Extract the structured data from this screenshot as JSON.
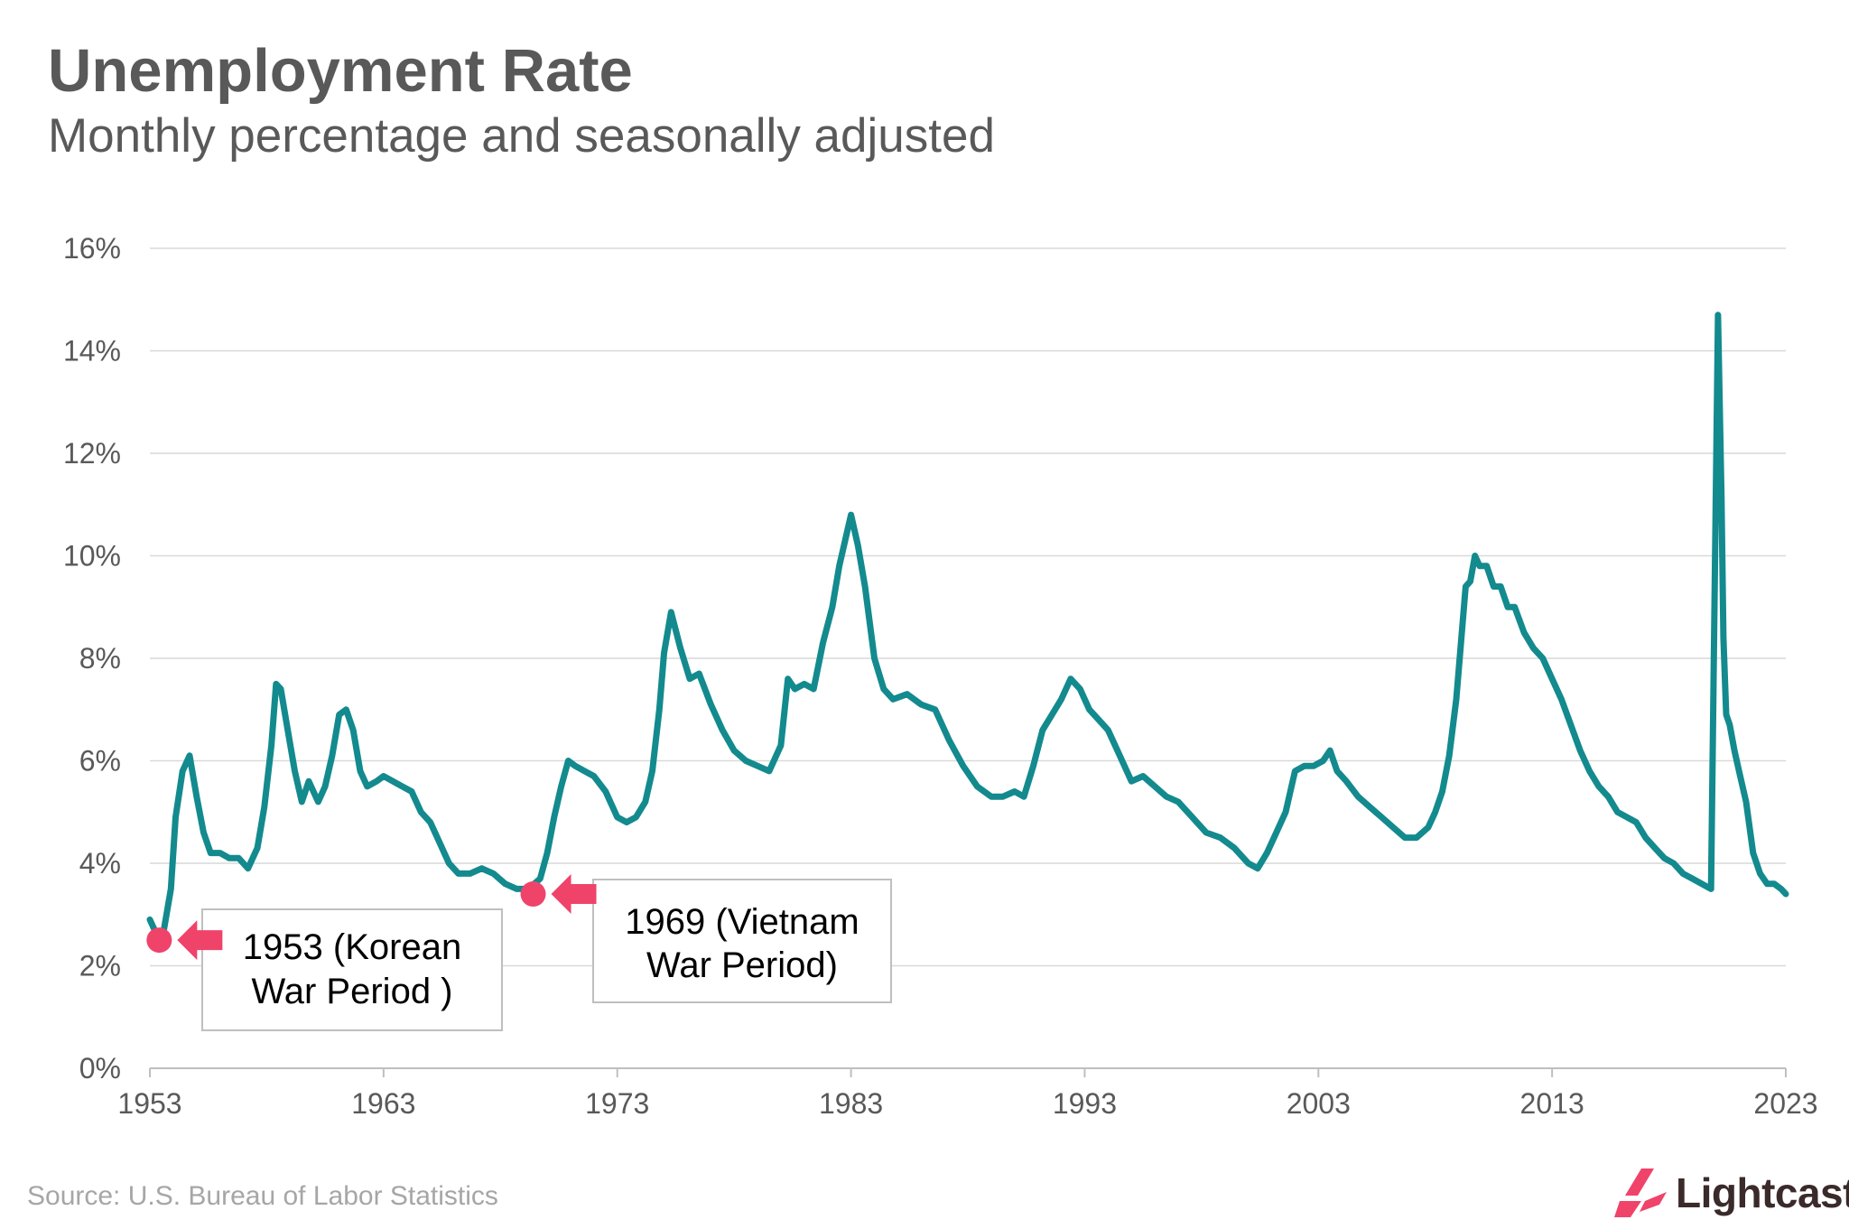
{
  "header": {
    "title": "Unemployment Rate",
    "subtitle": "Monthly percentage and seasonally adjusted"
  },
  "footer": {
    "source": "Source:  U.S. Bureau of Labor Statistics",
    "logo_text": "Lightcast"
  },
  "colors": {
    "line": "#138a8e",
    "grid": "#d9d9d9",
    "axis_text": "#595959",
    "marker": "#f0436a",
    "logo_mark": "#f0436a"
  },
  "chart_data": {
    "type": "line",
    "title": "Unemployment Rate",
    "subtitle": "Monthly percentage and seasonally adjusted",
    "xlabel": "",
    "ylabel": "",
    "xlim": [
      1953,
      2023
    ],
    "ylim": [
      0,
      16
    ],
    "x_ticks": [
      1953,
      1963,
      1973,
      1983,
      1993,
      2003,
      2013,
      2023
    ],
    "x_tick_labels": [
      "1953",
      "1963",
      "1973",
      "1983",
      "1993",
      "2003",
      "2013",
      "2023"
    ],
    "y_ticks": [
      0,
      2,
      4,
      6,
      8,
      10,
      12,
      14,
      16
    ],
    "y_tick_labels": [
      "0%",
      "2%",
      "4%",
      "6%",
      "8%",
      "10%",
      "12%",
      "14%",
      "16%"
    ],
    "grid": "horizontal",
    "series": [
      {
        "x": [
          1953.0,
          1953.3,
          1953.6,
          1953.9,
          1954.1,
          1954.4,
          1954.7,
          1955.0,
          1955.3,
          1955.6,
          1956.0,
          1956.4,
          1956.8,
          1957.2,
          1957.6,
          1957.9,
          1958.2,
          1958.4,
          1958.6,
          1958.9,
          1959.2,
          1959.5,
          1959.8,
          1960.2,
          1960.5,
          1960.8,
          1961.1,
          1961.4,
          1961.7,
          1962.0,
          1962.3,
          1962.7,
          1963.0,
          1963.4,
          1963.8,
          1964.2,
          1964.6,
          1965.0,
          1965.4,
          1965.8,
          1966.2,
          1966.7,
          1967.2,
          1967.7,
          1968.2,
          1968.7,
          1969.2,
          1969.7,
          1970.0,
          1970.3,
          1970.6,
          1970.9,
          1971.2,
          1971.6,
          1972.0,
          1972.5,
          1973.0,
          1973.4,
          1973.8,
          1974.2,
          1974.5,
          1974.8,
          1975.0,
          1975.3,
          1975.7,
          1976.1,
          1976.5,
          1977.0,
          1977.5,
          1978.0,
          1978.5,
          1979.0,
          1979.5,
          1980.0,
          1980.3,
          1980.6,
          1981.0,
          1981.4,
          1981.8,
          1982.2,
          1982.5,
          1982.8,
          1983.0,
          1983.3,
          1983.6,
          1984.0,
          1984.4,
          1984.8,
          1985.4,
          1986.0,
          1986.6,
          1987.2,
          1987.8,
          1988.4,
          1989.0,
          1989.5,
          1990.0,
          1990.4,
          1990.8,
          1991.2,
          1991.6,
          1992.0,
          1992.4,
          1992.8,
          1993.2,
          1993.6,
          1994.0,
          1994.5,
          1995.0,
          1995.5,
          1996.0,
          1996.5,
          1997.0,
          1997.6,
          1998.2,
          1998.8,
          1999.4,
          2000.0,
          2000.4,
          2000.8,
          2001.2,
          2001.6,
          2002.0,
          2002.4,
          2002.8,
          2003.2,
          2003.5,
          2003.8,
          2004.2,
          2004.7,
          2005.2,
          2005.7,
          2006.2,
          2006.7,
          2007.2,
          2007.7,
          2008.0,
          2008.3,
          2008.6,
          2008.9,
          2009.1,
          2009.3,
          2009.5,
          2009.7,
          2009.9,
          2010.2,
          2010.5,
          2010.8,
          2011.1,
          2011.4,
          2011.8,
          2012.2,
          2012.6,
          2013.0,
          2013.4,
          2013.8,
          2014.2,
          2014.6,
          2015.0,
          2015.4,
          2015.8,
          2016.2,
          2016.6,
          2017.0,
          2017.4,
          2017.8,
          2018.2,
          2018.6,
          2019.0,
          2019.4,
          2019.8,
          2020.1,
          2020.25,
          2020.33,
          2020.45,
          2020.6,
          2020.8,
          2021.0,
          2021.3,
          2021.6,
          2021.9,
          2022.2,
          2022.5,
          2022.8,
          2023.0
        ],
        "y": [
          2.9,
          2.6,
          2.7,
          3.5,
          4.9,
          5.8,
          6.1,
          5.3,
          4.6,
          4.2,
          4.2,
          4.1,
          4.1,
          3.9,
          4.3,
          5.1,
          6.3,
          7.5,
          7.4,
          6.6,
          5.8,
          5.2,
          5.6,
          5.2,
          5.5,
          6.1,
          6.9,
          7.0,
          6.6,
          5.8,
          5.5,
          5.6,
          5.7,
          5.6,
          5.5,
          5.4,
          5.0,
          4.8,
          4.4,
          4.0,
          3.8,
          3.8,
          3.9,
          3.8,
          3.6,
          3.5,
          3.5,
          3.7,
          4.2,
          4.9,
          5.5,
          6.0,
          5.9,
          5.8,
          5.7,
          5.4,
          4.9,
          4.8,
          4.9,
          5.2,
          5.8,
          7.0,
          8.1,
          8.9,
          8.2,
          7.6,
          7.7,
          7.1,
          6.6,
          6.2,
          6.0,
          5.9,
          5.8,
          6.3,
          7.6,
          7.4,
          7.5,
          7.4,
          8.3,
          9.0,
          9.8,
          10.4,
          10.8,
          10.2,
          9.4,
          8.0,
          7.4,
          7.2,
          7.3,
          7.1,
          7.0,
          6.4,
          5.9,
          5.5,
          5.3,
          5.3,
          5.4,
          5.3,
          5.9,
          6.6,
          6.9,
          7.2,
          7.6,
          7.4,
          7.0,
          6.8,
          6.6,
          6.1,
          5.6,
          5.7,
          5.5,
          5.3,
          5.2,
          4.9,
          4.6,
          4.5,
          4.3,
          4.0,
          3.9,
          4.2,
          4.6,
          5.0,
          5.8,
          5.9,
          5.9,
          6.0,
          6.2,
          5.8,
          5.6,
          5.3,
          5.1,
          4.9,
          4.7,
          4.5,
          4.5,
          4.7,
          5.0,
          5.4,
          6.1,
          7.2,
          8.3,
          9.4,
          9.5,
          10.0,
          9.8,
          9.8,
          9.4,
          9.4,
          9.0,
          9.0,
          8.5,
          8.2,
          8.0,
          7.6,
          7.2,
          6.7,
          6.2,
          5.8,
          5.5,
          5.3,
          5.0,
          4.9,
          4.8,
          4.5,
          4.3,
          4.1,
          4.0,
          3.8,
          3.7,
          3.6,
          3.5,
          14.7,
          11.1,
          8.4,
          6.9,
          6.7,
          6.2,
          5.8,
          5.2,
          4.2,
          3.8,
          3.6,
          3.6,
          3.5,
          3.4
        ]
      }
    ],
    "markers": [
      {
        "x": 1953.4,
        "y": 2.5
      },
      {
        "x": 1969.4,
        "y": 3.4
      }
    ],
    "annotations": [
      {
        "lines": [
          "1953 (Korean",
          "War Period )"
        ]
      },
      {
        "lines": [
          "1969 (Vietnam",
          "War Period)"
        ]
      }
    ]
  }
}
